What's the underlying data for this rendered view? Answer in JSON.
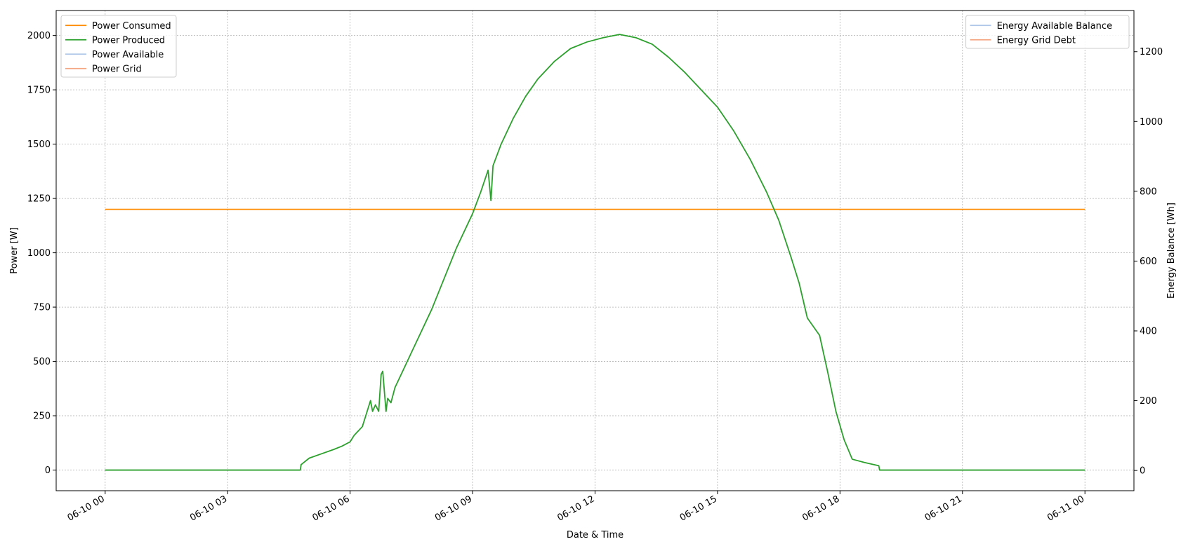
{
  "chart_data": {
    "type": "line",
    "title": "",
    "xlabel": "Date & Time",
    "ylabel": "Power [W]",
    "y2label": "Energy Balance [Wh]",
    "x_ticks": [
      {
        "hour": 0,
        "label": "06-10 00"
      },
      {
        "hour": 3,
        "label": "06-10 03"
      },
      {
        "hour": 6,
        "label": "06-10 06"
      },
      {
        "hour": 9,
        "label": "06-10 09"
      },
      {
        "hour": 12,
        "label": "06-10 12"
      },
      {
        "hour": 15,
        "label": "06-10 15"
      },
      {
        "hour": 18,
        "label": "06-10 18"
      },
      {
        "hour": 21,
        "label": "06-10 21"
      },
      {
        "hour": 24,
        "label": "06-11 00"
      }
    ],
    "xlim_hours": [
      -1.2,
      25.2
    ],
    "ylim": [
      -95,
      2115
    ],
    "y_ticks": [
      {
        "value": 0,
        "label": "0"
      },
      {
        "value": 250,
        "label": "250"
      },
      {
        "value": 500,
        "label": "500"
      },
      {
        "value": 750,
        "label": "750"
      },
      {
        "value": 1000,
        "label": "1000"
      },
      {
        "value": 1250,
        "label": "1250"
      },
      {
        "value": 1500,
        "label": "1500"
      },
      {
        "value": 1750,
        "label": "1750"
      },
      {
        "value": 2000,
        "label": "2000"
      }
    ],
    "y2lim": [
      -58,
      1318
    ],
    "y2_ticks": [
      {
        "value": 0,
        "label": "0"
      },
      {
        "value": 200,
        "label": "200"
      },
      {
        "value": 400,
        "label": "400"
      },
      {
        "value": 600,
        "label": "600"
      },
      {
        "value": 800,
        "label": "800"
      },
      {
        "value": 1000,
        "label": "1000"
      },
      {
        "value": 1200,
        "label": "1200"
      }
    ],
    "grid": true,
    "legend_left_position": "upper-left",
    "legend_right_position": "upper-right",
    "series": [
      {
        "name": "Power Consumed",
        "axis": "left",
        "color": "#ff8c00",
        "legend": "left",
        "points": [
          [
            0,
            1200
          ],
          [
            24,
            1200
          ]
        ]
      },
      {
        "name": "Power Produced",
        "axis": "left",
        "color": "#2ca02c",
        "legend": "left",
        "points": [
          [
            0,
            0
          ],
          [
            4.78,
            0
          ],
          [
            4.8,
            25
          ],
          [
            5.0,
            55
          ],
          [
            5.3,
            75
          ],
          [
            5.6,
            95
          ],
          [
            5.8,
            110
          ],
          [
            6.0,
            130
          ],
          [
            6.1,
            160
          ],
          [
            6.3,
            200
          ],
          [
            6.4,
            260
          ],
          [
            6.5,
            320
          ],
          [
            6.55,
            270
          ],
          [
            6.62,
            300
          ],
          [
            6.7,
            270
          ],
          [
            6.76,
            440
          ],
          [
            6.8,
            455
          ],
          [
            6.84,
            360
          ],
          [
            6.88,
            270
          ],
          [
            6.92,
            330
          ],
          [
            7.0,
            310
          ],
          [
            7.1,
            380
          ],
          [
            7.3,
            460
          ],
          [
            7.5,
            540
          ],
          [
            7.7,
            620
          ],
          [
            8.0,
            740
          ],
          [
            8.3,
            880
          ],
          [
            8.6,
            1020
          ],
          [
            9.0,
            1180
          ],
          [
            9.2,
            1280
          ],
          [
            9.38,
            1380
          ],
          [
            9.45,
            1240
          ],
          [
            9.5,
            1400
          ],
          [
            9.7,
            1500
          ],
          [
            10.0,
            1620
          ],
          [
            10.3,
            1720
          ],
          [
            10.6,
            1800
          ],
          [
            11.0,
            1880
          ],
          [
            11.4,
            1940
          ],
          [
            11.8,
            1970
          ],
          [
            12.2,
            1990
          ],
          [
            12.6,
            2005
          ],
          [
            13.0,
            1990
          ],
          [
            13.4,
            1960
          ],
          [
            13.8,
            1900
          ],
          [
            14.2,
            1830
          ],
          [
            14.6,
            1750
          ],
          [
            15.0,
            1670
          ],
          [
            15.4,
            1560
          ],
          [
            15.8,
            1430
          ],
          [
            16.2,
            1280
          ],
          [
            16.5,
            1150
          ],
          [
            16.8,
            980
          ],
          [
            17.0,
            860
          ],
          [
            17.2,
            700
          ],
          [
            17.5,
            620
          ],
          [
            17.7,
            450
          ],
          [
            17.9,
            270
          ],
          [
            18.1,
            140
          ],
          [
            18.3,
            50
          ],
          [
            18.6,
            35
          ],
          [
            18.95,
            20
          ],
          [
            18.97,
            0
          ],
          [
            24,
            0
          ]
        ]
      },
      {
        "name": "Power Available",
        "axis": "left",
        "color": "#aec7e8",
        "legend": "left",
        "points": []
      },
      {
        "name": "Power Grid",
        "axis": "left",
        "color": "#f4a582",
        "legend": "left",
        "points": []
      },
      {
        "name": "Energy Available Balance",
        "axis": "right",
        "color": "#aec7e8",
        "legend": "right",
        "points": []
      },
      {
        "name": "Energy Grid Debt",
        "axis": "right",
        "color": "#f4a582",
        "legend": "right",
        "points": []
      }
    ]
  }
}
